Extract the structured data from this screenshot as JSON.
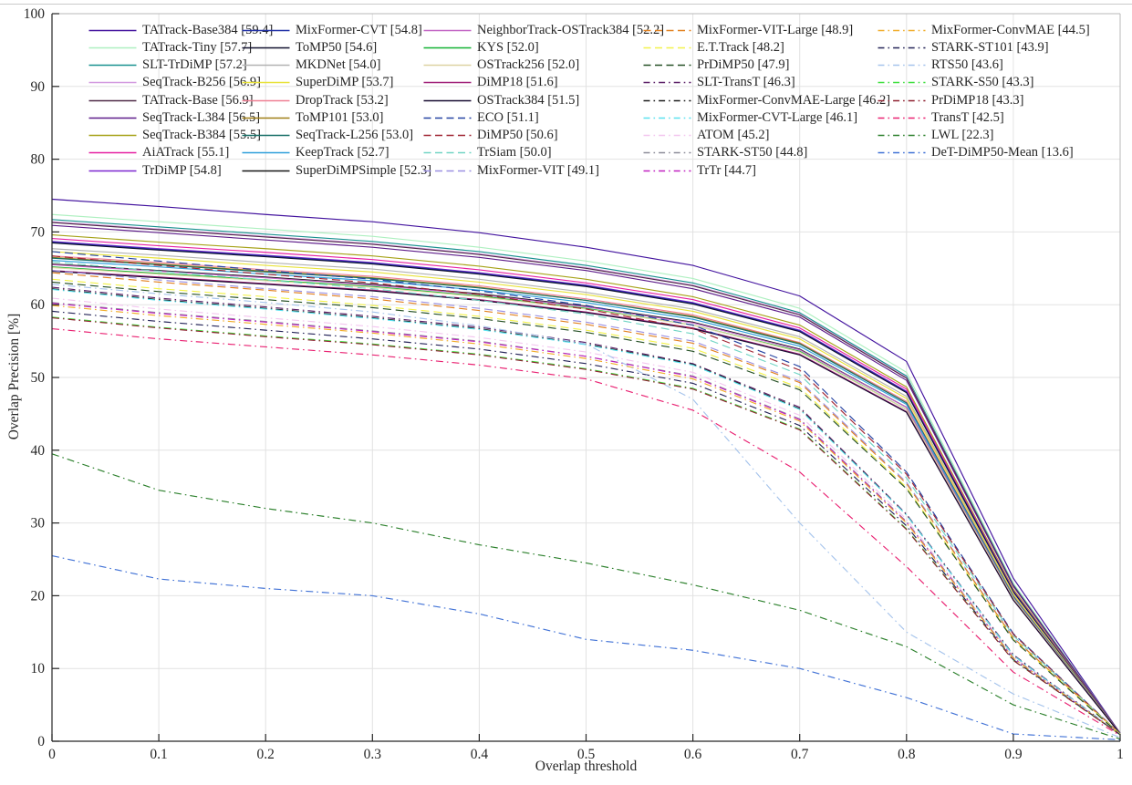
{
  "chart_data": {
    "type": "line",
    "title": "",
    "xlabel": "Overlap threshold",
    "ylabel": "Overlap Precision [%]",
    "xlim": [
      0,
      1
    ],
    "ylim": [
      0,
      100
    ],
    "grid": true,
    "legend_position": "top-inside",
    "legend_columns": 5,
    "x_ticks": [
      "0",
      "0.1",
      "0.2",
      "0.3",
      "0.4",
      "0.5",
      "0.6",
      "0.7",
      "0.8",
      "0.9",
      "1"
    ],
    "y_ticks": [
      "0",
      "10",
      "20",
      "30",
      "40",
      "50",
      "60",
      "70",
      "80",
      "90",
      "100"
    ],
    "colors": {
      "axis": "#262626",
      "grid": "#e2e2e2",
      "box": "#b8b8b8",
      "background": "#ffffff"
    },
    "x": [
      0,
      0.1,
      0.2,
      0.3,
      0.4,
      0.5,
      0.6,
      0.7,
      0.8,
      0.9,
      1.0
    ],
    "series": [
      {
        "name": "TATrack-Base384",
        "score": 59.4,
        "color": "#42129e",
        "style": "solid",
        "values": [
          74.5,
          73.5,
          72.4,
          71.4,
          69.9,
          67.9,
          65.4,
          61.2,
          52.2,
          22.4,
          1.1
        ]
      },
      {
        "name": "TATrack-Tiny",
        "score": 57.7,
        "color": "#aef0c0",
        "style": "solid",
        "values": [
          72.4,
          71.4,
          70.4,
          69.4,
          67.9,
          66.0,
          63.6,
          59.5,
          50.7,
          21.7,
          1.1
        ]
      },
      {
        "name": "SLT-TrDiMP",
        "score": 57.2,
        "color": "#18918f",
        "style": "solid",
        "values": [
          71.7,
          70.7,
          69.7,
          68.7,
          67.3,
          65.4,
          63.0,
          58.9,
          50.2,
          21.5,
          1.1
        ]
      },
      {
        "name": "SeqTrack-B256",
        "score": 56.9,
        "color": "#d39ae0",
        "style": "solid",
        "values": [
          71.4,
          70.4,
          69.4,
          68.4,
          67.0,
          65.1,
          62.7,
          58.7,
          50.0,
          21.4,
          1.1
        ]
      },
      {
        "name": "TATrack-Base",
        "score": 56.9,
        "color": "#4f2a47",
        "style": "solid",
        "values": [
          71.3,
          70.3,
          69.3,
          68.3,
          66.9,
          65.0,
          62.6,
          58.6,
          49.9,
          21.4,
          1.1
        ]
      },
      {
        "name": "SeqTrack-L384",
        "score": 56.5,
        "color": "#5e1d8a",
        "style": "solid",
        "values": [
          70.9,
          69.9,
          68.9,
          67.9,
          66.5,
          64.7,
          62.2,
          58.3,
          49.6,
          21.3,
          1.1
        ]
      },
      {
        "name": "SeqTrack-B384",
        "score": 55.5,
        "color": "#a6a218",
        "style": "solid",
        "values": [
          69.6,
          68.6,
          67.7,
          66.7,
          65.3,
          63.5,
          61.1,
          57.2,
          48.7,
          20.9,
          1.0
        ]
      },
      {
        "name": "AiATrack",
        "score": 55.1,
        "color": "#e620a2",
        "style": "solid",
        "values": [
          69.1,
          68.1,
          67.2,
          66.2,
          64.8,
          63.0,
          60.7,
          56.8,
          48.4,
          20.7,
          1.0
        ]
      },
      {
        "name": "TrDiMP",
        "score": 54.8,
        "color": "#7b26cf",
        "style": "solid",
        "values": [
          68.7,
          67.7,
          66.8,
          65.8,
          64.4,
          62.7,
          60.3,
          56.5,
          48.1,
          20.6,
          1.0
        ]
      },
      {
        "name": "MixFormer-CVT",
        "score": 54.8,
        "color": "#1f2fa6",
        "style": "solid",
        "values": [
          68.6,
          67.6,
          66.7,
          65.7,
          64.3,
          62.6,
          60.2,
          56.4,
          48.0,
          20.6,
          1.0
        ]
      },
      {
        "name": "ToMP50",
        "score": 54.6,
        "color": "#10102f",
        "style": "solid",
        "values": [
          68.5,
          67.5,
          66.6,
          65.6,
          64.2,
          62.5,
          60.1,
          56.3,
          47.9,
          20.5,
          1.0
        ]
      },
      {
        "name": "MKDNet",
        "score": 54.0,
        "color": "#b2b2b2",
        "style": "solid",
        "values": [
          67.7,
          66.8,
          65.8,
          64.9,
          63.5,
          61.7,
          59.4,
          55.6,
          47.4,
          20.3,
          1.0
        ]
      },
      {
        "name": "SuperDiMP",
        "score": 53.7,
        "color": "#e8e23a",
        "style": "solid",
        "values": [
          67.3,
          66.4,
          65.4,
          64.5,
          63.1,
          61.4,
          59.1,
          55.3,
          47.1,
          20.2,
          1.0
        ]
      },
      {
        "name": "DropTrack",
        "score": 53.2,
        "color": "#ef7f93",
        "style": "solid",
        "values": [
          66.7,
          65.8,
          64.8,
          63.9,
          62.6,
          60.8,
          58.6,
          54.8,
          46.7,
          20.0,
          1.0
        ]
      },
      {
        "name": "ToMP101",
        "score": 53.0,
        "color": "#9f7f16",
        "style": "solid",
        "values": [
          66.5,
          65.6,
          64.6,
          63.7,
          62.4,
          60.6,
          58.4,
          54.7,
          46.5,
          19.9,
          1.0
        ]
      },
      {
        "name": "SeqTrack-L256",
        "score": 53.0,
        "color": "#176e66",
        "style": "solid",
        "values": [
          66.4,
          65.5,
          64.5,
          63.6,
          62.3,
          60.6,
          58.3,
          54.6,
          46.5,
          19.9,
          1.0
        ]
      },
      {
        "name": "KeepTrack",
        "score": 52.7,
        "color": "#2f9fdb",
        "style": "solid",
        "values": [
          66.1,
          65.2,
          64.2,
          63.3,
          62.0,
          60.3,
          58.0,
          54.3,
          46.3,
          19.8,
          1.0
        ]
      },
      {
        "name": "SuperDiMPSimple",
        "score": 52.3,
        "color": "#161616",
        "style": "solid",
        "values": [
          65.6,
          64.7,
          63.8,
          62.8,
          61.5,
          59.8,
          57.6,
          53.9,
          45.9,
          19.7,
          1.0
        ]
      },
      {
        "name": "NeighborTrack-OSTrack384",
        "score": 52.2,
        "color": "#c263c4",
        "style": "solid",
        "values": [
          65.5,
          64.6,
          63.7,
          62.7,
          61.4,
          59.7,
          57.5,
          53.8,
          45.9,
          19.7,
          1.0
        ]
      },
      {
        "name": "KYS",
        "score": 52.0,
        "color": "#12b232",
        "style": "solid",
        "values": [
          65.2,
          64.3,
          63.4,
          62.5,
          61.2,
          59.5,
          57.2,
          53.6,
          45.6,
          19.6,
          1.0
        ]
      },
      {
        "name": "OSTrack256",
        "score": 52.0,
        "color": "#ded3a2",
        "style": "solid",
        "values": [
          65.1,
          64.2,
          63.3,
          62.4,
          61.1,
          59.4,
          57.2,
          53.5,
          45.6,
          19.6,
          1.0
        ]
      },
      {
        "name": "DiMP18",
        "score": 51.6,
        "color": "#a02179",
        "style": "solid",
        "values": [
          64.7,
          63.8,
          62.9,
          62.0,
          60.7,
          59.0,
          56.8,
          53.2,
          45.3,
          19.4,
          1.0
        ]
      },
      {
        "name": "OSTrack384",
        "score": 51.5,
        "color": "#170b30",
        "style": "solid",
        "values": [
          64.6,
          63.7,
          62.8,
          61.9,
          60.6,
          58.9,
          56.7,
          53.1,
          45.2,
          19.4,
          1.0
        ]
      },
      {
        "name": "ECO",
        "score": 51.1,
        "color": "#2543a2",
        "style": "dashed",
        "values": [
          67.3,
          66.0,
          64.7,
          63.5,
          61.9,
          59.9,
          57.2,
          51.5,
          37.0,
          14.8,
          1.0
        ]
      },
      {
        "name": "DiMP50",
        "score": 50.6,
        "color": "#a02532",
        "style": "dashed",
        "values": [
          66.7,
          65.4,
          64.2,
          63.0,
          61.4,
          59.4,
          56.7,
          51.0,
          36.7,
          14.7,
          1.0
        ]
      },
      {
        "name": "TrSiam",
        "score": 50.0,
        "color": "#72d5c5",
        "style": "dashed",
        "values": [
          65.9,
          64.6,
          63.4,
          62.2,
          60.6,
          58.7,
          56.0,
          50.4,
          36.2,
          14.5,
          1.0
        ]
      },
      {
        "name": "MixFormer-VIT",
        "score": 49.1,
        "color": "#9b90e2",
        "style": "dashed",
        "values": [
          64.7,
          63.4,
          62.2,
          61.1,
          59.5,
          57.6,
          55.0,
          49.5,
          35.6,
          14.2,
          1.0
        ]
      },
      {
        "name": "MixFormer-VIT-Large",
        "score": 48.9,
        "color": "#e2811f",
        "style": "dashed",
        "values": [
          64.4,
          63.1,
          62.0,
          60.8,
          59.2,
          57.3,
          54.7,
          49.3,
          35.4,
          14.2,
          1.0
        ]
      },
      {
        "name": "E.T.Track",
        "score": 48.2,
        "color": "#f2f24b",
        "style": "dashed",
        "values": [
          63.5,
          62.2,
          61.1,
          59.9,
          58.4,
          56.5,
          54.0,
          48.6,
          34.9,
          14.0,
          1.0
        ]
      },
      {
        "name": "PrDiMP50",
        "score": 47.9,
        "color": "#255025",
        "style": "dashed",
        "values": [
          63.1,
          61.8,
          60.7,
          59.6,
          58.1,
          56.2,
          53.6,
          48.3,
          34.7,
          13.9,
          0.9
        ]
      },
      {
        "name": "SLT-TransT",
        "score": 46.3,
        "color": "#5c2169",
        "style": "dashdot",
        "values": [
          62.4,
          60.9,
          59.7,
          58.4,
          56.9,
          54.8,
          51.9,
          45.9,
          31.2,
          11.9,
          0.9
        ]
      },
      {
        "name": "MixFormer-ConvMAE-Large",
        "score": 46.2,
        "color": "#1c1c1c",
        "style": "dashdot",
        "values": [
          62.2,
          60.7,
          59.5,
          58.2,
          56.7,
          54.6,
          51.8,
          45.7,
          31.1,
          11.8,
          0.9
        ]
      },
      {
        "name": "MixFormer-CVT-Large",
        "score": 46.1,
        "color": "#5be1ef",
        "style": "dashdot",
        "values": [
          62.1,
          60.6,
          59.4,
          58.1,
          56.6,
          54.5,
          51.7,
          45.6,
          31.1,
          11.8,
          0.9
        ]
      },
      {
        "name": "ATOM",
        "score": 45.2,
        "color": "#f3c6ef",
        "style": "dashdot",
        "values": [
          60.9,
          59.4,
          58.2,
          57.0,
          55.5,
          53.5,
          50.7,
          44.8,
          30.5,
          11.6,
          0.9
        ]
      },
      {
        "name": "STARK-ST50",
        "score": 44.8,
        "color": "#8e8e9a",
        "style": "dashdot",
        "values": [
          60.3,
          58.9,
          57.7,
          56.4,
          55.0,
          52.9,
          50.2,
          44.3,
          30.2,
          11.5,
          0.9
        ]
      },
      {
        "name": "TrTr",
        "score": 44.7,
        "color": "#c122c1",
        "style": "dashdot",
        "values": [
          60.2,
          58.8,
          57.6,
          56.3,
          54.9,
          52.9,
          50.1,
          44.2,
          30.1,
          11.4,
          0.9
        ]
      },
      {
        "name": "MixFormer-ConvMAE",
        "score": 44.5,
        "color": "#f0ac29",
        "style": "dashdot",
        "values": [
          59.9,
          58.5,
          57.3,
          56.1,
          54.6,
          52.6,
          49.8,
          44.0,
          30.0,
          11.4,
          0.9
        ]
      },
      {
        "name": "STARK-ST101",
        "score": 43.9,
        "color": "#252558",
        "style": "dashdot",
        "values": [
          59.1,
          57.7,
          56.5,
          55.3,
          53.9,
          51.9,
          49.2,
          43.4,
          29.6,
          11.2,
          0.9
        ]
      },
      {
        "name": "RTS50",
        "score": 43.6,
        "color": "#a6c4ec",
        "style": "dashdot",
        "values": [
          62.8,
          61.5,
          60.3,
          59.0,
          57.1,
          54.6,
          47.0,
          30.0,
          15.0,
          6.5,
          0.5
        ]
      },
      {
        "name": "STARK-S50",
        "score": 43.3,
        "color": "#3fdf3f",
        "style": "dashdot",
        "values": [
          58.3,
          56.9,
          55.7,
          54.6,
          53.2,
          51.2,
          48.5,
          42.9,
          29.2,
          11.1,
          0.9
        ]
      },
      {
        "name": "PrDiMP18",
        "score": 43.3,
        "color": "#8e2130",
        "style": "dashdot",
        "values": [
          58.2,
          56.8,
          55.6,
          54.5,
          53.1,
          51.1,
          48.4,
          42.8,
          29.1,
          11.1,
          0.9
        ]
      },
      {
        "name": "TransT",
        "score": 42.5,
        "color": "#e92272",
        "style": "dashdot",
        "values": [
          56.7,
          55.3,
          54.2,
          53.1,
          51.7,
          49.8,
          45.5,
          37.0,
          24.0,
          9.5,
          0.8
        ]
      },
      {
        "name": "LWL",
        "score": 22.3,
        "color": "#2c802c",
        "style": "dashdot",
        "values": [
          39.5,
          34.5,
          32.0,
          30.0,
          27.0,
          24.5,
          21.5,
          18.0,
          13.0,
          5.0,
          0.3
        ]
      },
      {
        "name": "DeT-DiMP50-Mean",
        "score": 13.6,
        "color": "#4172d6",
        "style": "dashdot",
        "values": [
          25.5,
          22.3,
          21.0,
          20.0,
          17.5,
          14.0,
          12.5,
          10.0,
          6.0,
          1.0,
          0.2
        ]
      }
    ]
  }
}
